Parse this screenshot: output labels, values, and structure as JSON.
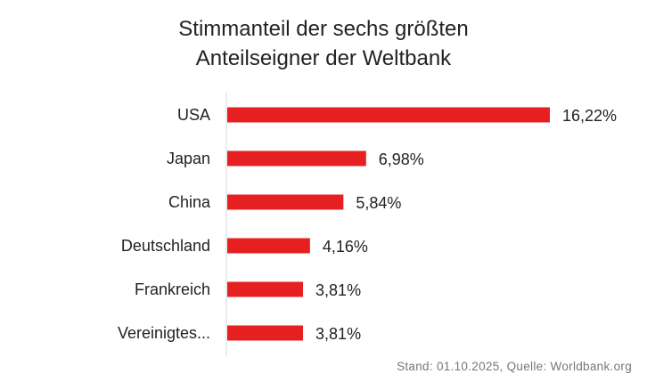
{
  "chart_data": {
    "type": "bar",
    "orientation": "horizontal",
    "title_lines": [
      "Stimmanteil der sechs größten",
      "Anteilseigner der Weltbank"
    ],
    "categories": [
      "USA",
      "Japan",
      "China",
      "Deutschland",
      "Frankreich",
      "Vereinigtes..."
    ],
    "values": [
      16.22,
      6.98,
      5.84,
      4.16,
      3.81,
      3.81
    ],
    "data_labels": [
      "16,22%",
      "6,98%",
      "5,84%",
      "4,16%",
      "3,81%",
      "3,81%"
    ],
    "xlim": [
      0,
      16.22
    ],
    "grid": false,
    "bar_color": "#e62020",
    "note": "Stand: 01.10.2025, Quelle: Worldbank.org"
  }
}
